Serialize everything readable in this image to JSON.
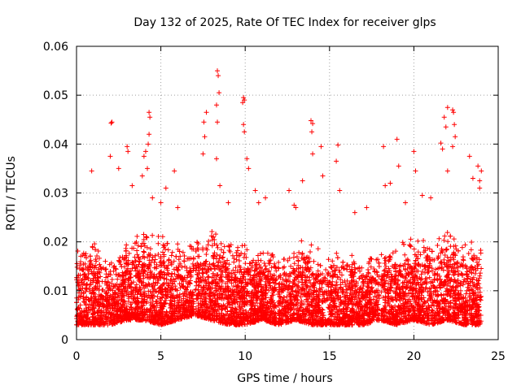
{
  "chart_data": {
    "type": "scatter",
    "title": "Day 132 of 2025, Rate Of TEC Index for receiver glps",
    "xlabel": "GPS time / hours",
    "ylabel": "ROTI / TECUs",
    "xlim": [
      0,
      25
    ],
    "ylim": [
      0,
      0.06
    ],
    "xticks": [
      "0",
      "5",
      "10",
      "15",
      "20",
      "25"
    ],
    "yticks": [
      "0",
      "0.01",
      "0.02",
      "0.03",
      "0.04",
      "0.05",
      "0.06"
    ],
    "grid": true,
    "marker": "+",
    "color": "#ff0000",
    "series": [
      {
        "name": "ROTI",
        "generated_points_per_hour": 260,
        "gaps_hours": [
          [
            6.95,
            7.05
          ],
          [
            11.85,
            11.95
          ],
          [
            17.95,
            18.05
          ],
          [
            21.3,
            21.36
          ],
          [
            23.25,
            23.3
          ]
        ],
        "hourly_envelope": [
          {
            "t": 0,
            "low": 0.003,
            "high": 0.019
          },
          {
            "t": 1,
            "low": 0.003,
            "high": 0.02
          },
          {
            "t": 2,
            "low": 0.003,
            "high": 0.017
          },
          {
            "t": 3,
            "low": 0.004,
            "high": 0.02
          },
          {
            "t": 4,
            "low": 0.004,
            "high": 0.024
          },
          {
            "t": 5,
            "low": 0.003,
            "high": 0.022
          },
          {
            "t": 6,
            "low": 0.004,
            "high": 0.02
          },
          {
            "t": 7,
            "low": 0.005,
            "high": 0.02
          },
          {
            "t": 8,
            "low": 0.004,
            "high": 0.024
          },
          {
            "t": 9,
            "low": 0.003,
            "high": 0.022
          },
          {
            "t": 10,
            "low": 0.003,
            "high": 0.021
          },
          {
            "t": 11,
            "low": 0.004,
            "high": 0.019
          },
          {
            "t": 12,
            "low": 0.003,
            "high": 0.018
          },
          {
            "t": 13,
            "low": 0.004,
            "high": 0.02
          },
          {
            "t": 14,
            "low": 0.003,
            "high": 0.021
          },
          {
            "t": 15,
            "low": 0.003,
            "high": 0.018
          },
          {
            "t": 16,
            "low": 0.003,
            "high": 0.018
          },
          {
            "t": 17,
            "low": 0.003,
            "high": 0.017
          },
          {
            "t": 18,
            "low": 0.004,
            "high": 0.019
          },
          {
            "t": 19,
            "low": 0.003,
            "high": 0.02
          },
          {
            "t": 20,
            "low": 0.004,
            "high": 0.021
          },
          {
            "t": 21,
            "low": 0.003,
            "high": 0.022
          },
          {
            "t": 22,
            "low": 0.004,
            "high": 0.023
          },
          {
            "t": 23,
            "low": 0.003,
            "high": 0.021
          },
          {
            "t": 24,
            "low": 0.003,
            "high": 0.019
          }
        ],
        "outliers": [
          [
            0.9,
            0.0345
          ],
          [
            2.05,
            0.0443
          ],
          [
            2.1,
            0.0445
          ],
          [
            2.0,
            0.0375
          ],
          [
            2.5,
            0.035
          ],
          [
            3.0,
            0.0395
          ],
          [
            3.05,
            0.0385
          ],
          [
            3.3,
            0.0315
          ],
          [
            3.9,
            0.0335
          ],
          [
            4.0,
            0.0375
          ],
          [
            4.1,
            0.0385
          ],
          [
            4.3,
            0.0465
          ],
          [
            4.35,
            0.0455
          ],
          [
            4.3,
            0.042
          ],
          [
            4.25,
            0.04
          ],
          [
            4.2,
            0.035
          ],
          [
            5.3,
            0.031
          ],
          [
            5.8,
            0.0345
          ],
          [
            7.6,
            0.0415
          ],
          [
            7.7,
            0.0465
          ],
          [
            7.55,
            0.0445
          ],
          [
            7.5,
            0.038
          ],
          [
            8.35,
            0.055
          ],
          [
            8.4,
            0.054
          ],
          [
            8.45,
            0.0505
          ],
          [
            8.3,
            0.048
          ],
          [
            8.35,
            0.0445
          ],
          [
            8.3,
            0.037
          ],
          [
            8.5,
            0.0315
          ],
          [
            9.9,
            0.0495
          ],
          [
            9.95,
            0.049
          ],
          [
            9.85,
            0.0485
          ],
          [
            9.9,
            0.044
          ],
          [
            9.95,
            0.0425
          ],
          [
            10.1,
            0.037
          ],
          [
            10.2,
            0.035
          ],
          [
            10.6,
            0.0305
          ],
          [
            11.2,
            0.029
          ],
          [
            12.6,
            0.0305
          ],
          [
            12.9,
            0.0275
          ],
          [
            13.4,
            0.0325
          ],
          [
            13.9,
            0.0448
          ],
          [
            14.0,
            0.0442
          ],
          [
            13.95,
            0.0425
          ],
          [
            14.0,
            0.038
          ],
          [
            14.5,
            0.0395
          ],
          [
            14.6,
            0.0335
          ],
          [
            15.5,
            0.0398
          ],
          [
            15.4,
            0.0365
          ],
          [
            15.6,
            0.0305
          ],
          [
            18.2,
            0.0395
          ],
          [
            18.3,
            0.0315
          ],
          [
            18.6,
            0.032
          ],
          [
            19.0,
            0.041
          ],
          [
            19.1,
            0.0355
          ],
          [
            20.0,
            0.0385
          ],
          [
            20.1,
            0.0345
          ],
          [
            20.5,
            0.0295
          ],
          [
            21.6,
            0.0402
          ],
          [
            21.7,
            0.039
          ],
          [
            21.8,
            0.0455
          ],
          [
            21.9,
            0.0435
          ],
          [
            22.0,
            0.0475
          ],
          [
            22.3,
            0.047
          ],
          [
            22.35,
            0.0465
          ],
          [
            22.4,
            0.044
          ],
          [
            22.45,
            0.0415
          ],
          [
            22.3,
            0.0395
          ],
          [
            22.0,
            0.0345
          ],
          [
            23.3,
            0.0375
          ],
          [
            23.5,
            0.033
          ],
          [
            23.8,
            0.0355
          ],
          [
            23.9,
            0.0325
          ],
          [
            23.9,
            0.031
          ],
          [
            24.0,
            0.0345
          ],
          [
            4.5,
            0.029
          ],
          [
            5.0,
            0.028
          ],
          [
            6.0,
            0.027
          ],
          [
            9.0,
            0.028
          ],
          [
            10.8,
            0.028
          ],
          [
            13.0,
            0.027
          ],
          [
            16.5,
            0.026
          ],
          [
            17.2,
            0.027
          ],
          [
            19.5,
            0.028
          ],
          [
            21.0,
            0.029
          ]
        ]
      }
    ]
  }
}
